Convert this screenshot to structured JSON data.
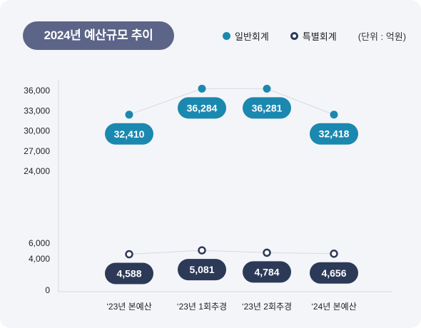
{
  "title": "2024년 예산규모 추이",
  "legend": {
    "general": "일반회계",
    "special": "특별회계",
    "unit": "(단위 : 억원)"
  },
  "colors": {
    "general": "#1b88b0",
    "special": "#2c3a58",
    "title_bg": "#5c6488",
    "card_bg": "#f4f5f9"
  },
  "chart_data": {
    "type": "line",
    "categories": [
      "‘23년 본예산",
      "‘23년 1회추경",
      "‘23년 2회추경",
      "‘24년 본예산"
    ],
    "series": [
      {
        "name": "일반회계",
        "values": [
          32410,
          36284,
          36281,
          32418
        ],
        "labels": [
          "32,410",
          "36,284",
          "36,281",
          "32,418"
        ]
      },
      {
        "name": "특별회계",
        "values": [
          4588,
          5081,
          4784,
          4656
        ],
        "labels": [
          "4,588",
          "5,081",
          "4,784",
          "4,656"
        ]
      }
    ],
    "y_axis": {
      "broken": true,
      "lower_ticks": [
        "0",
        "4,000",
        "6,000"
      ],
      "upper_ticks": [
        "24,000",
        "27,000",
        "30,000",
        "33,000",
        "36,000"
      ],
      "lower_range": [
        0,
        6000
      ],
      "upper_range": [
        24000,
        36000
      ]
    },
    "grid": false,
    "legend_position": "top-right"
  }
}
